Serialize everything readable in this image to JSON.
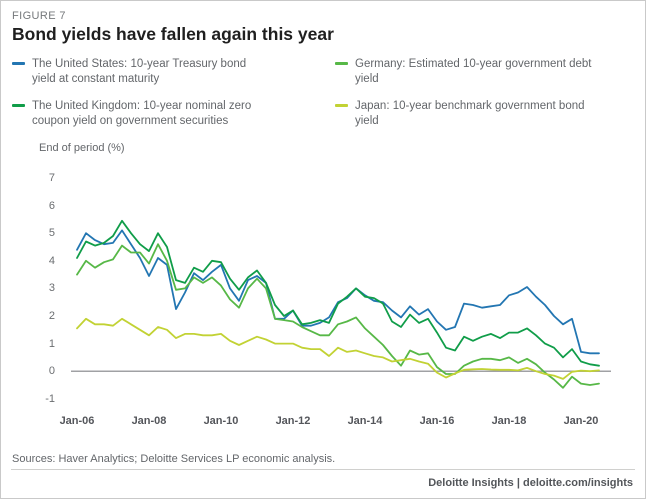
{
  "figure_label": "FIGURE 7",
  "title": "Bond yields have fallen again this year",
  "axis_note": "End of period (%)",
  "sources": "Sources: Haver Analytics; Deloitte Services LP economic analysis.",
  "footer": "Deloitte Insights | deloitte.com/insights",
  "legend": [
    {
      "label": "The United States: 10-year Treasury bond yield at constant maturity",
      "color": "#2376b2"
    },
    {
      "label": "The United Kingdom: 10-year nominal zero coupon yield on government securities",
      "color": "#109d49"
    },
    {
      "label": "Germany: Estimated 10-year government debt yield",
      "color": "#57b847"
    },
    {
      "label": "Japan: 10-year benchmark government bond yield",
      "color": "#c2d234"
    }
  ],
  "chart_data": {
    "type": "line",
    "title": "Bond yields have fallen again this year",
    "xlabel": "",
    "ylabel": "End of period (%)",
    "ylim": [
      -1,
      7
    ],
    "yticks": [
      7,
      6,
      5,
      4,
      3,
      2,
      1,
      0,
      -1
    ],
    "xticks": [
      "Jan-06",
      "Jan-08",
      "Jan-10",
      "Jan-12",
      "Jan-14",
      "Jan-16",
      "Jan-18",
      "Jan-20"
    ],
    "grid": false,
    "legend_position": "top",
    "zero_line": true,
    "zero_line_color": "#a0a1a4",
    "x": [
      2006,
      2006.25,
      2006.5,
      2006.75,
      2007,
      2007.25,
      2007.5,
      2007.75,
      2008,
      2008.25,
      2008.5,
      2008.75,
      2009,
      2009.25,
      2009.5,
      2009.75,
      2010,
      2010.25,
      2010.5,
      2010.75,
      2011,
      2011.25,
      2011.5,
      2011.75,
      2012,
      2012.25,
      2012.5,
      2012.75,
      2013,
      2013.25,
      2013.5,
      2013.75,
      2014,
      2014.25,
      2014.5,
      2014.75,
      2015,
      2015.25,
      2015.5,
      2015.75,
      2016,
      2016.25,
      2016.5,
      2016.75,
      2017,
      2017.25,
      2017.5,
      2017.75,
      2018,
      2018.25,
      2018.5,
      2018.75,
      2019,
      2019.25,
      2019.5,
      2019.75,
      2020,
      2020.25,
      2020.5
    ],
    "series": [
      {
        "name": "The United States: 10-year Treasury bond yield at constant maturity",
        "color": "#2376b2",
        "values": [
          4.4,
          5.0,
          4.75,
          4.6,
          4.65,
          5.1,
          4.6,
          4.1,
          3.45,
          4.1,
          3.85,
          2.25,
          2.85,
          3.55,
          3.3,
          3.6,
          3.85,
          3.0,
          2.55,
          3.3,
          3.45,
          3.2,
          1.9,
          1.9,
          2.2,
          1.65,
          1.65,
          1.75,
          1.95,
          2.5,
          2.65,
          3.0,
          2.75,
          2.55,
          2.5,
          2.2,
          1.95,
          2.35,
          2.05,
          2.25,
          1.8,
          1.5,
          1.6,
          2.45,
          2.4,
          2.3,
          2.35,
          2.4,
          2.75,
          2.85,
          3.05,
          2.7,
          2.4,
          2.0,
          1.7,
          1.9,
          0.7,
          0.65,
          0.65
        ]
      },
      {
        "name": "The United Kingdom: 10-year nominal zero coupon yield on government securities",
        "color": "#109d49",
        "values": [
          4.1,
          4.7,
          4.55,
          4.65,
          4.9,
          5.45,
          5.0,
          4.6,
          4.35,
          5.0,
          4.5,
          3.3,
          3.2,
          3.75,
          3.6,
          4.0,
          3.95,
          3.35,
          2.95,
          3.4,
          3.65,
          3.2,
          2.4,
          2.0,
          2.2,
          1.7,
          1.75,
          1.85,
          1.75,
          2.45,
          2.7,
          3.0,
          2.7,
          2.65,
          2.45,
          1.8,
          1.6,
          2.05,
          1.75,
          1.9,
          1.4,
          0.85,
          0.75,
          1.25,
          1.1,
          1.25,
          1.35,
          1.2,
          1.4,
          1.4,
          1.55,
          1.3,
          1.0,
          0.85,
          0.5,
          0.8,
          0.35,
          0.25,
          0.2
        ]
      },
      {
        "name": "Germany: Estimated 10-year government debt yield",
        "color": "#57b847",
        "values": [
          3.5,
          4.0,
          3.75,
          3.95,
          4.05,
          4.55,
          4.3,
          4.3,
          3.9,
          4.6,
          4.0,
          2.95,
          3.0,
          3.4,
          3.2,
          3.4,
          3.1,
          2.6,
          2.3,
          3.0,
          3.35,
          3.0,
          1.9,
          1.85,
          1.8,
          1.6,
          1.45,
          1.3,
          1.3,
          1.7,
          1.8,
          1.95,
          1.55,
          1.25,
          0.95,
          0.55,
          0.2,
          0.75,
          0.6,
          0.65,
          0.15,
          -0.1,
          -0.1,
          0.2,
          0.35,
          0.45,
          0.45,
          0.4,
          0.5,
          0.3,
          0.45,
          0.25,
          -0.05,
          -0.3,
          -0.6,
          -0.2,
          -0.45,
          -0.5,
          -0.45
        ]
      },
      {
        "name": "Japan: 10-year benchmark government bond yield",
        "color": "#c2d234",
        "values": [
          1.55,
          1.9,
          1.7,
          1.7,
          1.65,
          1.9,
          1.7,
          1.5,
          1.3,
          1.6,
          1.5,
          1.2,
          1.35,
          1.35,
          1.3,
          1.3,
          1.35,
          1.1,
          0.95,
          1.1,
          1.25,
          1.15,
          1.0,
          1.0,
          1.0,
          0.85,
          0.8,
          0.8,
          0.55,
          0.85,
          0.7,
          0.75,
          0.65,
          0.55,
          0.5,
          0.35,
          0.4,
          0.45,
          0.35,
          0.27,
          -0.05,
          -0.23,
          -0.08,
          0.05,
          0.07,
          0.08,
          0.06,
          0.05,
          0.05,
          0.03,
          0.12,
          0.0,
          -0.1,
          -0.16,
          -0.28,
          -0.02,
          0.02,
          0.0,
          0.03
        ]
      }
    ]
  }
}
